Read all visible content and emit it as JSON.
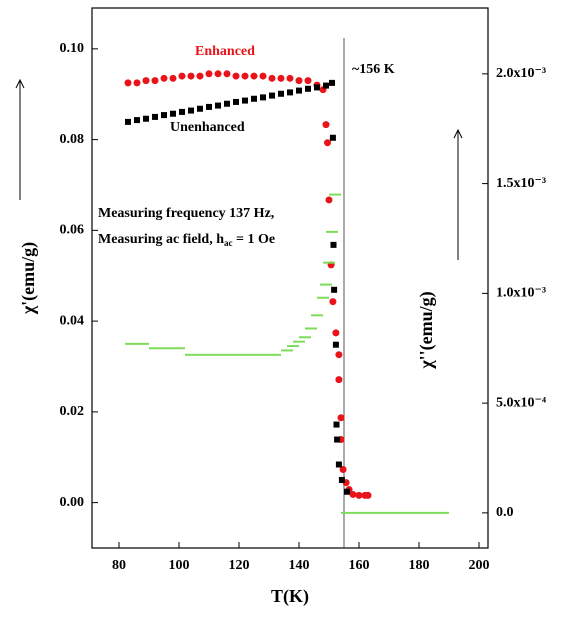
{
  "chart_data": {
    "type": "scatter",
    "xlabel": "T(K)",
    "ylabel": "χ'(emu/g)",
    "y2label": "χ''(emu/g)",
    "xlim": [
      71,
      203
    ],
    "xticks": [
      80,
      100,
      120,
      140,
      160,
      180,
      200
    ],
    "ylim": [
      -0.01,
      0.109
    ],
    "yticks": [
      {
        "value": 0,
        "label": "0.00"
      },
      {
        "value": 0.02,
        "label": "0.02"
      },
      {
        "value": 0.04,
        "label": "0.04"
      },
      {
        "value": 0.06,
        "label": "0.06"
      },
      {
        "value": 0.08,
        "label": "0.08"
      },
      {
        "value": 0.1,
        "label": "0.10"
      }
    ],
    "y2lim": [
      -0.00016,
      0.0023
    ],
    "y2ticks": [
      {
        "value": 0,
        "label": "0.0"
      },
      {
        "value": 0.0005,
        "label": "5.0x10⁻⁴"
      },
      {
        "value": 0.001,
        "label": "1.0x10⁻³"
      },
      {
        "value": 0.0015,
        "label": "1.5x10⁻³"
      },
      {
        "value": 0.002,
        "label": "2.0x10⁻³"
      }
    ],
    "vline": {
      "x": 155,
      "label": "~156 K"
    },
    "annotations": [
      "Measuring frequency 137 Hz,",
      "Measuring ac field, h",
      "ac",
      " = 1 Oe"
    ],
    "series": [
      {
        "name": "Enhanced",
        "color": "#e8141a",
        "marker": "circle",
        "x": [
          83,
          86,
          89,
          92,
          95,
          98,
          101,
          104,
          107,
          110,
          113,
          116,
          119,
          122,
          125,
          128,
          131,
          134,
          137,
          140,
          143,
          146,
          148,
          149,
          149.5,
          150,
          150.7,
          151.3,
          152.3,
          153.3,
          153.3,
          154,
          154,
          154.7,
          155.7,
          156.7,
          158,
          160,
          162,
          163
        ],
        "values": [
          0.0925,
          0.0925,
          0.093,
          0.093,
          0.0935,
          0.0935,
          0.094,
          0.094,
          0.094,
          0.0945,
          0.0945,
          0.0945,
          0.094,
          0.094,
          0.094,
          0.094,
          0.0935,
          0.0935,
          0.0935,
          0.093,
          0.093,
          0.092,
          0.091,
          0.0833,
          0.0793,
          0.0667,
          0.0524,
          0.0443,
          0.0374,
          0.0326,
          0.0271,
          0.0187,
          0.0139,
          0.0073,
          0.0044,
          0.0029,
          0.0018,
          0.0016,
          0.0016,
          0.0016
        ]
      },
      {
        "name": "Unenhanced",
        "color": "#000000",
        "marker": "square",
        "x": [
          83,
          86,
          89,
          92,
          95,
          98,
          101,
          104,
          107,
          110,
          113,
          116,
          119,
          122,
          125,
          128,
          131,
          134,
          137,
          140,
          143,
          146,
          149,
          151,
          151.3,
          151.5,
          151.7,
          152.3,
          152.5,
          152.7,
          153.3,
          154.3,
          156
        ],
        "values": [
          0.0839,
          0.0843,
          0.0846,
          0.085,
          0.0854,
          0.0857,
          0.0861,
          0.0864,
          0.0868,
          0.0872,
          0.0875,
          0.0879,
          0.0883,
          0.0886,
          0.089,
          0.0893,
          0.0897,
          0.0901,
          0.0904,
          0.0908,
          0.0912,
          0.0915,
          0.0919,
          0.0925,
          0.0804,
          0.0568,
          0.0469,
          0.0348,
          0.0172,
          0.0139,
          0.0084,
          0.005,
          0.0024
        ]
      },
      {
        "color": "#7ddc5a",
        "marker": "dash",
        "axis": "y2",
        "x": [
          84,
          88,
          92,
          96,
          100,
          104,
          108,
          112,
          116,
          120,
          124,
          128,
          132,
          136,
          138,
          140,
          142,
          144,
          146,
          148,
          149,
          150,
          151,
          152,
          156,
          160,
          164,
          168,
          172,
          176,
          180,
          184,
          188
        ],
        "values": [
          0.00077,
          0.00077,
          0.00075,
          0.00075,
          0.00075,
          0.00072,
          0.00072,
          0.00072,
          0.00072,
          0.00072,
          0.00072,
          0.00072,
          0.00072,
          0.00074,
          0.00076,
          0.00078,
          0.0008,
          0.00084,
          0.0009,
          0.00098,
          0.00104,
          0.00114,
          0.00128,
          0.00145,
          0,
          0,
          0,
          0,
          0,
          0,
          0,
          0,
          0
        ]
      }
    ]
  }
}
